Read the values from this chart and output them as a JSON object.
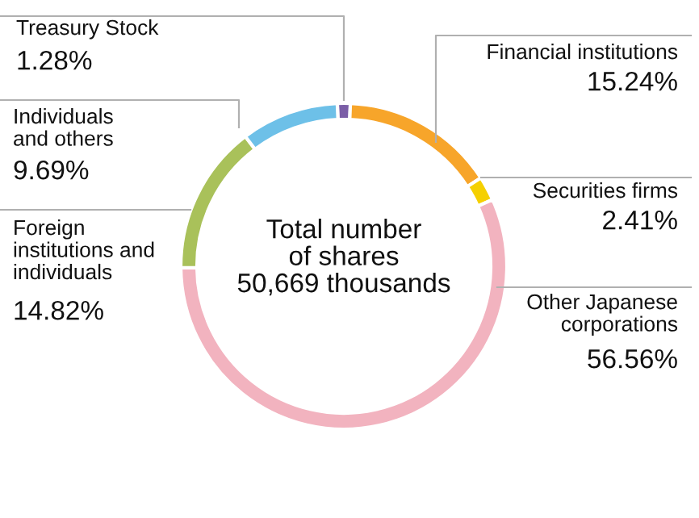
{
  "chart_data": {
    "type": "donut",
    "categories": [
      "Treasury Stock",
      "Financial institutions",
      "Securities firms",
      "Other Japanese\ncorporations",
      "Foreign\ninstitutions and\nindividuals",
      "Individuals\nand others"
    ],
    "values": [
      1.28,
      15.24,
      2.41,
      56.56,
      14.82,
      9.69
    ],
    "colors": [
      "#7b5ea7",
      "#f7a52a",
      "#f5d000",
      "#f2b3bf",
      "#a9c15a",
      "#6dc0e8"
    ],
    "value_labels": [
      "1.28%",
      "15.24%",
      "2.41%",
      "56.56%",
      "14.82%",
      "9.69%"
    ],
    "annotations": [
      "Total number\nof shares\n50,669 thousands"
    ],
    "legend": false
  }
}
